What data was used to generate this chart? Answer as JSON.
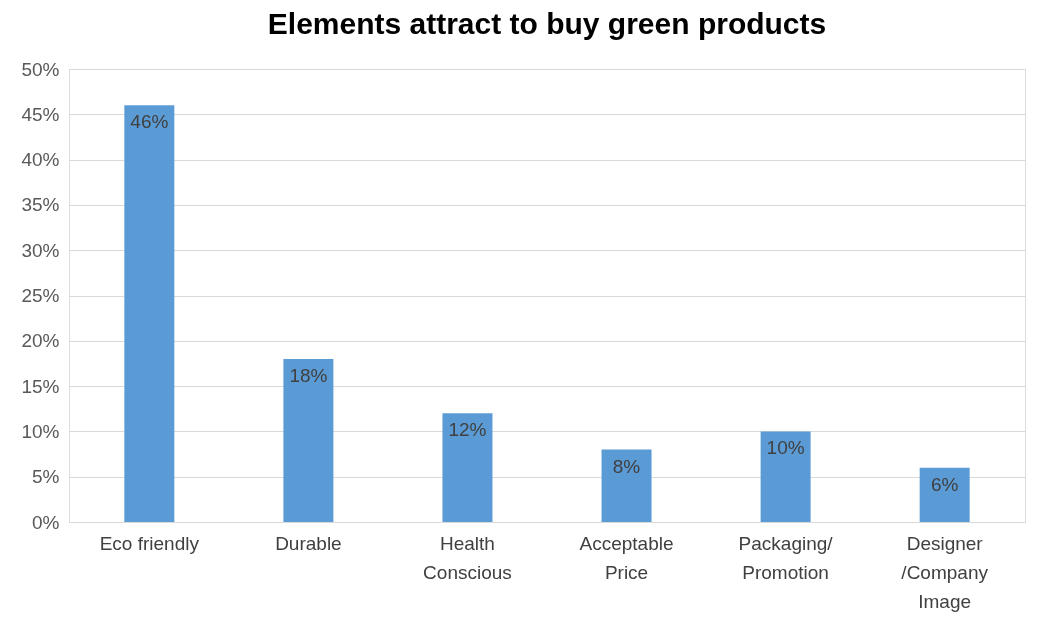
{
  "chart_data": {
    "type": "bar",
    "title": "Elements attract to buy green products",
    "categories": [
      "Eco friendly",
      "Durable",
      "Health\nConscious",
      "Acceptable\nPrice",
      "Packaging/\nPromotion",
      "Designer\n/Company\nImage"
    ],
    "values": [
      46,
      18,
      12,
      8,
      10,
      6
    ],
    "color": "#5b9bd5",
    "value_labels": [
      "46%",
      "18%",
      "12%",
      "8%",
      "10%",
      "6%"
    ],
    "ylim": [
      0,
      50
    ],
    "yticks": [
      {
        "value": 0,
        "label": "0%"
      },
      {
        "value": 5,
        "label": "5%"
      },
      {
        "value": 10,
        "label": "10%"
      },
      {
        "value": 15,
        "label": "15%"
      },
      {
        "value": 20,
        "label": "20%"
      },
      {
        "value": 25,
        "label": "25%"
      },
      {
        "value": 30,
        "label": "30%"
      },
      {
        "value": 35,
        "label": "35%"
      },
      {
        "value": 40,
        "label": "40%"
      },
      {
        "value": 45,
        "label": "45%"
      },
      {
        "value": 50,
        "label": "50%"
      }
    ],
    "grid": "y"
  }
}
